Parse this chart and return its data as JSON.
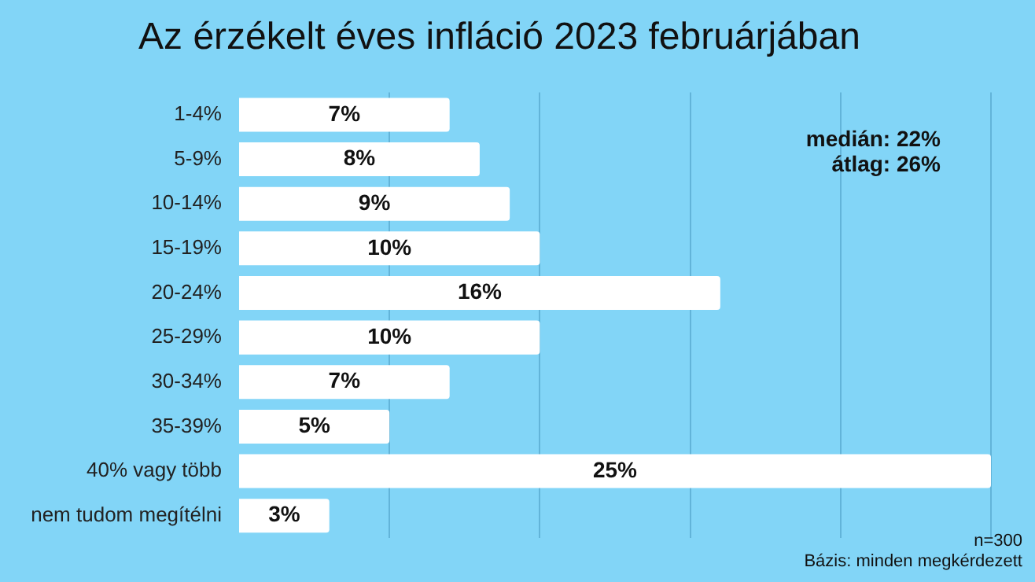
{
  "chart_data": {
    "type": "bar",
    "orientation": "horizontal",
    "title": "Az érzékelt éves infláció 2023 februárjában",
    "categories": [
      "1-4%",
      "5-9%",
      "10-14%",
      "15-19%",
      "20-24%",
      "25-29%",
      "30-34%",
      "35-39%",
      "40% vagy több",
      "nem tudom megítélni"
    ],
    "values": [
      7,
      8,
      9,
      10,
      16,
      10,
      7,
      5,
      25,
      3
    ],
    "color": "#ffffff",
    "value_labels": [
      "7%",
      "8%",
      "9%",
      "10%",
      "16%",
      "10%",
      "7%",
      "5%",
      "25%",
      "3%"
    ],
    "xlim": [
      0,
      25
    ],
    "xticks": [
      {
        "value": 5,
        "label": null
      },
      {
        "value": 10,
        "label": null
      },
      {
        "value": 15,
        "label": null
      },
      {
        "value": 20,
        "label": null
      },
      {
        "value": 25,
        "label": null
      }
    ],
    "grid": "x",
    "tick_labels": "y",
    "annotations": [
      "medián: 22%",
      "átlag: 26%",
      "n=300",
      "Bázis: minden megkérdezett"
    ]
  }
}
